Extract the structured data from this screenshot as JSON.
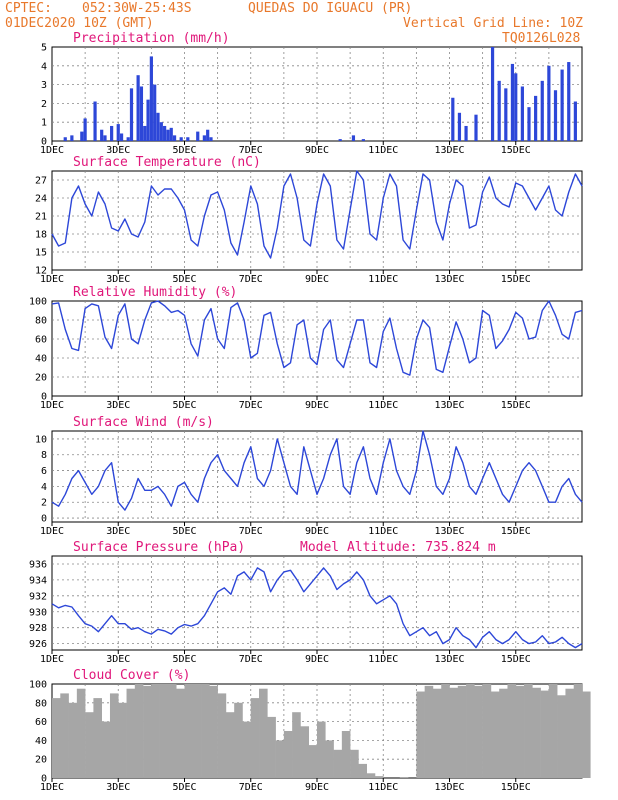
{
  "header": {
    "source": "CPTEC:",
    "coords": "052:30W-25:43S",
    "station": "QUEDAS DO IGUACU (PR)",
    "init": "01DEC2020 10Z (GMT)",
    "grid_note": "Vertical Grid Line: 10Z",
    "code": "TQ0126L028",
    "model_altitude": "Model Altitude: 735.824 m"
  },
  "colors": {
    "header": "#e8782b",
    "title": "#e0177a",
    "line": "#2d47d8",
    "bar": "#2d47d8",
    "cloud": "#a6a6a6"
  },
  "x_labels": [
    "1DEC",
    "3DEC",
    "5DEC",
    "7DEC",
    "9DEC",
    "11DEC",
    "13DEC",
    "15DEC"
  ],
  "chart_data": [
    {
      "type": "bar",
      "title": "Precipitation (mm/h)",
      "ylim": [
        0,
        5
      ],
      "yticks": [
        0,
        1,
        2,
        3,
        4,
        5
      ],
      "x": [
        0.4,
        0.6,
        0.9,
        1.0,
        1.3,
        1.5,
        1.6,
        1.8,
        2.0,
        2.1,
        2.3,
        2.4,
        2.6,
        2.7,
        2.8,
        2.9,
        3.0,
        3.1,
        3.2,
        3.3,
        3.4,
        3.5,
        3.6,
        3.7,
        3.9,
        4.1,
        4.4,
        4.6,
        4.7,
        4.8,
        8.7,
        9.1,
        9.4,
        12.1,
        12.3,
        12.5,
        12.8,
        13.3,
        13.5,
        13.7,
        13.9,
        14.0,
        14.2,
        14.4,
        14.6,
        14.8,
        15.0,
        15.2,
        15.4,
        15.6,
        15.8
      ],
      "values": [
        0.2,
        0.3,
        0.5,
        1.2,
        2.1,
        0.6,
        0.3,
        0.8,
        0.9,
        0.4,
        0.2,
        2.8,
        3.5,
        2.9,
        0.8,
        2.2,
        4.5,
        3.0,
        1.5,
        1.0,
        0.8,
        0.6,
        0.7,
        0.3,
        0.2,
        0.2,
        0.5,
        0.3,
        0.6,
        0.2,
        0.1,
        0.3,
        0.1,
        2.3,
        1.5,
        0.8,
        1.4,
        5.0,
        3.2,
        2.8,
        4.1,
        3.6,
        2.9,
        1.8,
        2.4,
        3.2,
        4.0,
        2.7,
        3.8,
        4.2,
        2.1
      ]
    },
    {
      "type": "line",
      "title": "Surface Temperature (nC)",
      "ylim": [
        12,
        28.5
      ],
      "yticks": [
        12,
        15,
        18,
        21,
        24,
        27
      ],
      "x": [
        0,
        0.2,
        0.4,
        0.6,
        0.8,
        1.0,
        1.2,
        1.4,
        1.6,
        1.8,
        2.0,
        2.2,
        2.4,
        2.6,
        2.8,
        3.0,
        3.2,
        3.4,
        3.6,
        3.8,
        4.0,
        4.2,
        4.4,
        4.6,
        4.8,
        5.0,
        5.2,
        5.4,
        5.6,
        5.8,
        6.0,
        6.2,
        6.4,
        6.6,
        6.8,
        7.0,
        7.2,
        7.4,
        7.6,
        7.8,
        8.0,
        8.2,
        8.4,
        8.6,
        8.8,
        9.0,
        9.2,
        9.4,
        9.6,
        9.8,
        10.0,
        10.2,
        10.4,
        10.6,
        10.8,
        11.0,
        11.2,
        11.4,
        11.6,
        11.8,
        12.0,
        12.2,
        12.4,
        12.6,
        12.8,
        13.0,
        13.2,
        13.4,
        13.6,
        13.8,
        14.0,
        14.2,
        14.4,
        14.6,
        14.8,
        15.0,
        15.2,
        15.4,
        15.6,
        15.8,
        16.0
      ],
      "values": [
        18,
        16,
        16.5,
        24,
        26,
        23,
        21,
        25,
        23,
        19,
        18.5,
        20.5,
        18,
        17.5,
        20,
        26,
        24.5,
        25.5,
        25.5,
        24,
        22,
        17,
        16,
        21,
        24.5,
        25,
        22,
        16.5,
        14.5,
        20,
        26,
        23,
        16,
        14,
        19,
        26,
        28,
        24,
        17,
        16,
        23,
        28,
        26,
        17,
        15.5,
        22,
        28.5,
        27,
        18,
        17,
        24,
        28,
        26,
        17,
        15.5,
        22,
        28,
        27,
        20,
        17,
        23,
        27,
        26,
        19,
        19.5,
        25,
        27.5,
        24,
        23,
        22.5,
        26.5,
        26,
        24,
        22,
        24,
        26,
        22,
        21,
        25,
        28,
        26
      ]
    },
    {
      "type": "line",
      "title": "Relative Humidity (%)",
      "ylim": [
        0,
        100
      ],
      "yticks": [
        0,
        20,
        40,
        60,
        80,
        100
      ],
      "x": [
        0,
        0.2,
        0.4,
        0.6,
        0.8,
        1.0,
        1.2,
        1.4,
        1.6,
        1.8,
        2.0,
        2.2,
        2.4,
        2.6,
        2.8,
        3.0,
        3.2,
        3.4,
        3.6,
        3.8,
        4.0,
        4.2,
        4.4,
        4.6,
        4.8,
        5.0,
        5.2,
        5.4,
        5.6,
        5.8,
        6.0,
        6.2,
        6.4,
        6.6,
        6.8,
        7.0,
        7.2,
        7.4,
        7.6,
        7.8,
        8.0,
        8.2,
        8.4,
        8.6,
        8.8,
        9.0,
        9.2,
        9.4,
        9.6,
        9.8,
        10.0,
        10.2,
        10.4,
        10.6,
        10.8,
        11.0,
        11.2,
        11.4,
        11.6,
        11.8,
        12.0,
        12.2,
        12.4,
        12.6,
        12.8,
        13.0,
        13.2,
        13.4,
        13.6,
        13.8,
        14.0,
        14.2,
        14.4,
        14.6,
        14.8,
        15.0,
        15.2,
        15.4,
        15.6,
        15.8,
        16.0
      ],
      "values": [
        97,
        98,
        70,
        50,
        48,
        92,
        97,
        95,
        62,
        50,
        85,
        97,
        60,
        55,
        80,
        98,
        100,
        95,
        88,
        90,
        85,
        55,
        42,
        80,
        92,
        60,
        50,
        93,
        98,
        80,
        40,
        45,
        85,
        88,
        55,
        30,
        35,
        75,
        80,
        40,
        33,
        70,
        80,
        38,
        30,
        55,
        80,
        80,
        35,
        30,
        68,
        82,
        50,
        25,
        22,
        60,
        80,
        72,
        28,
        25,
        52,
        78,
        60,
        35,
        40,
        90,
        85,
        50,
        58,
        70,
        88,
        82,
        60,
        62,
        90,
        100,
        85,
        65,
        60,
        88,
        90
      ]
    },
    {
      "type": "line",
      "title": "Surface Wind (m/s)",
      "ylim": [
        -0.5,
        11
      ],
      "yticks": [
        0,
        2,
        4,
        6,
        8,
        10
      ],
      "x": [
        0,
        0.2,
        0.4,
        0.6,
        0.8,
        1.0,
        1.2,
        1.4,
        1.6,
        1.8,
        2.0,
        2.2,
        2.4,
        2.6,
        2.8,
        3.0,
        3.2,
        3.4,
        3.6,
        3.8,
        4.0,
        4.2,
        4.4,
        4.6,
        4.8,
        5.0,
        5.2,
        5.4,
        5.6,
        5.8,
        6.0,
        6.2,
        6.4,
        6.6,
        6.8,
        7.0,
        7.2,
        7.4,
        7.6,
        7.8,
        8.0,
        8.2,
        8.4,
        8.6,
        8.8,
        9.0,
        9.2,
        9.4,
        9.6,
        9.8,
        10.0,
        10.2,
        10.4,
        10.6,
        10.8,
        11.0,
        11.2,
        11.4,
        11.6,
        11.8,
        12.0,
        12.2,
        12.4,
        12.6,
        12.8,
        13.0,
        13.2,
        13.4,
        13.6,
        13.8,
        14.0,
        14.2,
        14.4,
        14.6,
        14.8,
        15.0,
        15.2,
        15.4,
        15.6,
        15.8,
        16.0
      ],
      "values": [
        2,
        1.5,
        3,
        5,
        6,
        4.5,
        3,
        4,
        6,
        7,
        2,
        1,
        2.5,
        5,
        3.5,
        3.5,
        4,
        3,
        1.5,
        4,
        4.5,
        3,
        2,
        5,
        7,
        8,
        6,
        5,
        4,
        7,
        9,
        5,
        4,
        6,
        10,
        7,
        4,
        3,
        9,
        6,
        3,
        5,
        8,
        10,
        4,
        3,
        7,
        9,
        5,
        3,
        7,
        10,
        6,
        4,
        3,
        6,
        11,
        8,
        4,
        3,
        5,
        9,
        7,
        4,
        3,
        5,
        7,
        5,
        3,
        2,
        4,
        6,
        7,
        6,
        4,
        2,
        2,
        4,
        5,
        3,
        2
      ]
    },
    {
      "type": "line",
      "title": "Surface Pressure (hPa)",
      "ylim": [
        925.2,
        937
      ],
      "yticks": [
        926,
        928,
        930,
        932,
        934,
        936
      ],
      "x": [
        0,
        0.2,
        0.4,
        0.6,
        0.8,
        1.0,
        1.2,
        1.4,
        1.6,
        1.8,
        2.0,
        2.2,
        2.4,
        2.6,
        2.8,
        3.0,
        3.2,
        3.4,
        3.6,
        3.8,
        4.0,
        4.2,
        4.4,
        4.6,
        4.8,
        5.0,
        5.2,
        5.4,
        5.6,
        5.8,
        6.0,
        6.2,
        6.4,
        6.6,
        6.8,
        7.0,
        7.2,
        7.4,
        7.6,
        7.8,
        8.0,
        8.2,
        8.4,
        8.6,
        8.8,
        9.0,
        9.2,
        9.4,
        9.6,
        9.8,
        10.0,
        10.2,
        10.4,
        10.6,
        10.8,
        11.0,
        11.2,
        11.4,
        11.6,
        11.8,
        12.0,
        12.2,
        12.4,
        12.6,
        12.8,
        13.0,
        13.2,
        13.4,
        13.6,
        13.8,
        14.0,
        14.2,
        14.4,
        14.6,
        14.8,
        15.0,
        15.2,
        15.4,
        15.6,
        15.8,
        16.0
      ],
      "values": [
        931,
        930.5,
        930.8,
        930.6,
        929.5,
        928.5,
        928.2,
        927.5,
        928.5,
        929.5,
        928.5,
        928.5,
        927.8,
        928,
        927.5,
        927.2,
        927.8,
        927.6,
        927.2,
        928,
        928.4,
        928.2,
        928.5,
        929.5,
        931,
        932.5,
        933,
        932.2,
        934.5,
        935,
        934,
        935.5,
        935,
        932.5,
        934,
        935,
        935.2,
        934,
        932.5,
        933.5,
        934.5,
        935.5,
        934.5,
        932.8,
        933.5,
        934,
        935,
        934,
        932,
        931,
        931.5,
        932,
        931,
        928.5,
        927,
        927.5,
        928,
        927,
        927.5,
        926,
        926.5,
        928,
        927,
        926.5,
        925.5,
        926.8,
        927.5,
        926.5,
        926,
        926.5,
        927.5,
        926.5,
        926,
        926.2,
        927,
        926,
        926.2,
        926.8,
        926,
        925.5,
        926
      ]
    },
    {
      "type": "area",
      "title": "Cloud Cover (%)",
      "ylim": [
        0,
        100
      ],
      "yticks": [
        0,
        20,
        40,
        60,
        80,
        100
      ],
      "x": [
        0,
        0.25,
        0.5,
        0.75,
        1.0,
        1.25,
        1.5,
        1.75,
        2.0,
        2.25,
        2.5,
        2.75,
        3.0,
        3.25,
        3.5,
        3.75,
        4.0,
        4.25,
        4.5,
        4.75,
        5.0,
        5.25,
        5.5,
        5.75,
        6.0,
        6.25,
        6.5,
        6.75,
        7.0,
        7.25,
        7.5,
        7.75,
        8.0,
        8.25,
        8.5,
        8.75,
        9.0,
        9.25,
        9.5,
        9.75,
        10.0,
        10.25,
        10.5,
        10.75,
        11.0,
        11.25,
        11.5,
        11.75,
        12.0,
        12.25,
        12.5,
        12.75,
        13.0,
        13.25,
        13.5,
        13.75,
        14.0,
        14.25,
        14.5,
        14.75,
        15.0,
        15.25,
        15.5,
        15.75,
        16.0
      ],
      "values": [
        85,
        90,
        80,
        95,
        70,
        85,
        60,
        90,
        80,
        95,
        100,
        98,
        100,
        100,
        100,
        95,
        100,
        100,
        100,
        98,
        90,
        70,
        80,
        60,
        85,
        95,
        65,
        40,
        50,
        70,
        55,
        35,
        60,
        40,
        30,
        50,
        30,
        15,
        5,
        2,
        0,
        0,
        1,
        0,
        92,
        98,
        95,
        100,
        96,
        98,
        100,
        98,
        100,
        92,
        95,
        100,
        98,
        100,
        96,
        93,
        100,
        88,
        95,
        100,
        92
      ]
    }
  ]
}
